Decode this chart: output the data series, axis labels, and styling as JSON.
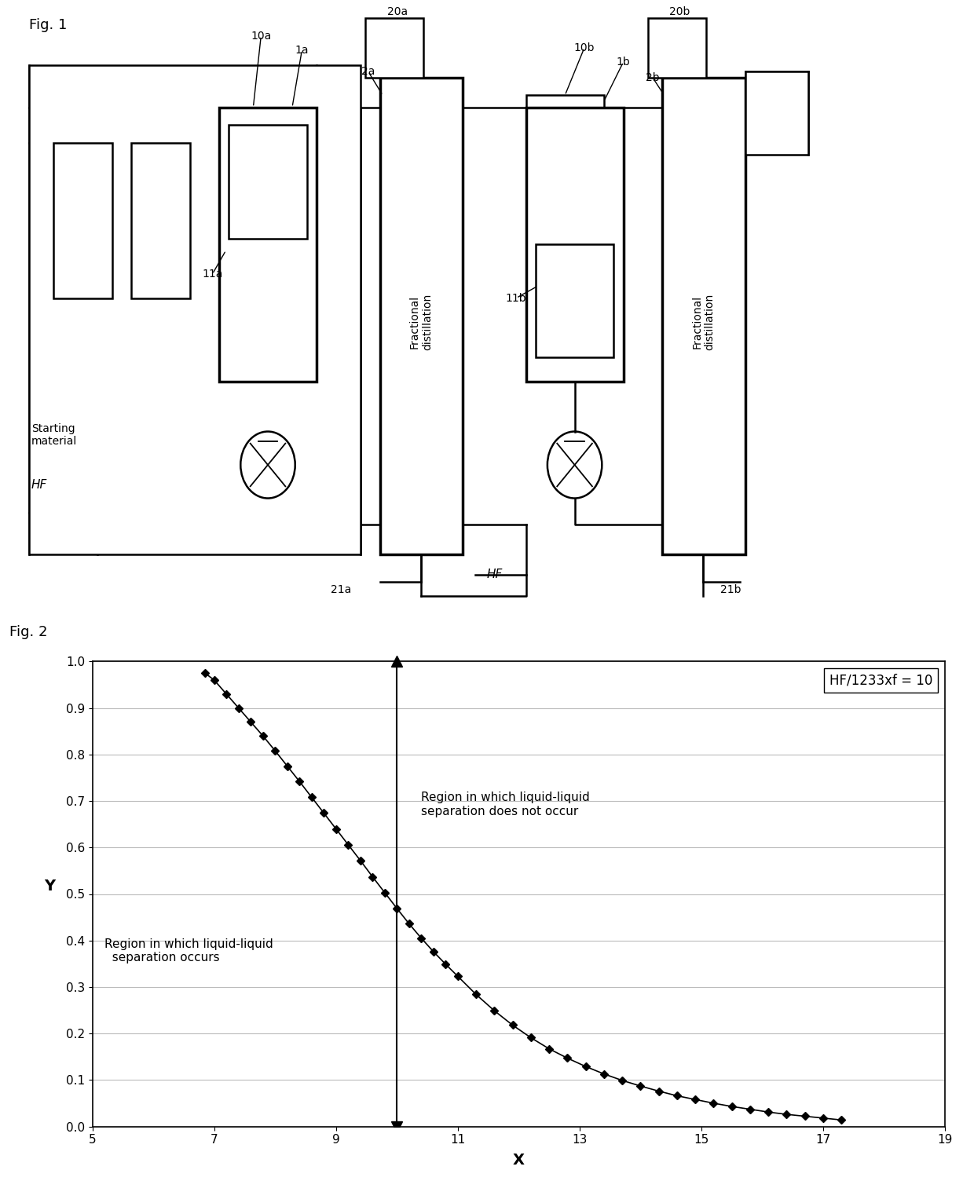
{
  "fig1_label": "Fig. 1",
  "fig2_label": "Fig. 2",
  "graph_xlabel": "X",
  "graph_ylabel": "Y",
  "graph_annotation": "HF/1233xf = 10",
  "region_left_line1": "Region in which liquid-liquid",
  "region_left_line2": "  separation occurs",
  "region_right_line1": "Region in which liquid-liquid",
  "region_right_line2": "separation does not occur",
  "vertical_line_x": 10.0,
  "xlim": [
    5,
    19
  ],
  "ylim": [
    0,
    1
  ],
  "xticks": [
    5,
    7,
    9,
    11,
    13,
    15,
    17,
    19
  ],
  "yticks": [
    0,
    0.1,
    0.2,
    0.3,
    0.4,
    0.5,
    0.6,
    0.7,
    0.8,
    0.9,
    1.0
  ],
  "curve_x": [
    6.85,
    7.0,
    7.2,
    7.4,
    7.6,
    7.8,
    8.0,
    8.2,
    8.4,
    8.6,
    8.8,
    9.0,
    9.2,
    9.4,
    9.6,
    9.8,
    10.0,
    10.2,
    10.4,
    10.6,
    10.8,
    11.0,
    11.3,
    11.6,
    11.9,
    12.2,
    12.5,
    12.8,
    13.1,
    13.4,
    13.7,
    14.0,
    14.3,
    14.6,
    14.9,
    15.2,
    15.5,
    15.8,
    16.1,
    16.4,
    16.7,
    17.0,
    17.3
  ],
  "curve_y": [
    0.975,
    0.96,
    0.93,
    0.9,
    0.87,
    0.84,
    0.808,
    0.775,
    0.742,
    0.708,
    0.674,
    0.64,
    0.606,
    0.572,
    0.537,
    0.503,
    0.469,
    0.436,
    0.405,
    0.376,
    0.349,
    0.323,
    0.284,
    0.249,
    0.218,
    0.191,
    0.167,
    0.147,
    0.129,
    0.113,
    0.099,
    0.087,
    0.076,
    0.066,
    0.058,
    0.05,
    0.043,
    0.037,
    0.031,
    0.026,
    0.022,
    0.018,
    0.014
  ],
  "bg_color": "#ffffff",
  "text_color": "#000000"
}
